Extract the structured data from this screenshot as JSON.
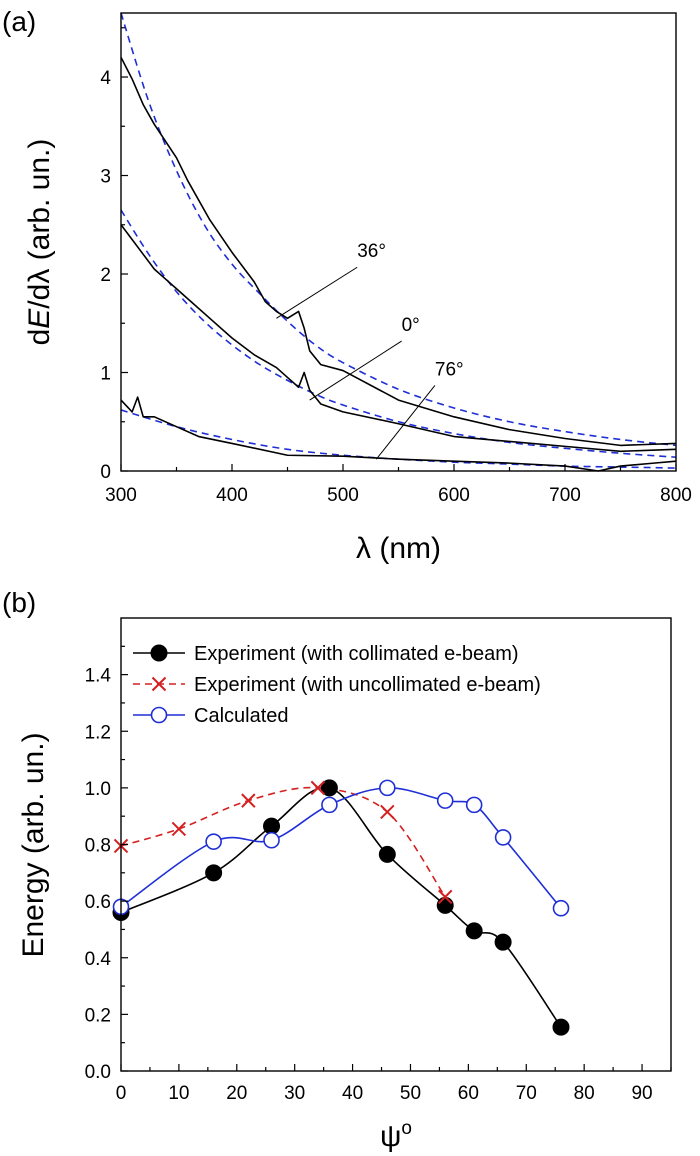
{
  "colors": {
    "measured": "#000000",
    "fit": "#1f2fd6",
    "collimated": "#000000",
    "uncollimated": "#d42020",
    "calculated": "#1f2fd6"
  },
  "chart_data": [
    {
      "type": "line",
      "panel_label": "(a)",
      "xlabel": "λ (nm)",
      "ylabel_prefix": "d",
      "ylabel_italic1": "E",
      "ylabel_mid": "/dλ (arb. un.)",
      "xlim": [
        300,
        800
      ],
      "ylim": [
        0,
        4.65
      ],
      "xticks": [
        "300",
        "400",
        "500",
        "600",
        "700",
        "800"
      ],
      "yticks": [
        "0",
        "1",
        "2",
        "3",
        "4"
      ],
      "series": [
        {
          "name": "36°",
          "style": "measured",
          "x": [
            300,
            310,
            320,
            330,
            340,
            350,
            360,
            380,
            400,
            420,
            430,
            440,
            450,
            460,
            465,
            470,
            480,
            500,
            550,
            600,
            650,
            700,
            750,
            800
          ],
          "y": [
            4.2,
            3.98,
            3.72,
            3.52,
            3.35,
            3.18,
            2.95,
            2.55,
            2.22,
            1.92,
            1.72,
            1.62,
            1.55,
            1.62,
            1.45,
            1.22,
            1.08,
            1.02,
            0.72,
            0.55,
            0.42,
            0.33,
            0.26,
            0.28
          ]
        },
        {
          "name": "36° fit",
          "style": "fit",
          "x": [
            300,
            325,
            350,
            375,
            400,
            425,
            450,
            475,
            500,
            550,
            600,
            650,
            700,
            750,
            800
          ],
          "y": [
            4.65,
            3.75,
            3.05,
            2.5,
            2.1,
            1.8,
            1.52,
            1.28,
            1.1,
            0.83,
            0.64,
            0.5,
            0.4,
            0.32,
            0.26
          ]
        },
        {
          "name": "0°",
          "style": "measured",
          "x": [
            300,
            310,
            320,
            330,
            340,
            350,
            360,
            380,
            400,
            420,
            440,
            450,
            460,
            465,
            470,
            480,
            500,
            550,
            600,
            650,
            700,
            750,
            800
          ],
          "y": [
            2.5,
            2.35,
            2.2,
            2.05,
            1.95,
            1.85,
            1.75,
            1.55,
            1.35,
            1.18,
            1.05,
            0.95,
            0.85,
            1.0,
            0.82,
            0.68,
            0.6,
            0.48,
            0.35,
            0.3,
            0.25,
            0.2,
            0.22
          ]
        },
        {
          "name": "0° fit",
          "style": "fit",
          "x": [
            300,
            325,
            350,
            375,
            400,
            425,
            450,
            475,
            500,
            550,
            600,
            650,
            700,
            750,
            800
          ],
          "y": [
            2.65,
            2.2,
            1.82,
            1.52,
            1.28,
            1.08,
            0.92,
            0.78,
            0.67,
            0.5,
            0.38,
            0.29,
            0.23,
            0.18,
            0.14
          ]
        },
        {
          "name": "76°",
          "style": "measured",
          "x": [
            300,
            310,
            315,
            320,
            330,
            350,
            370,
            400,
            450,
            500,
            550,
            600,
            650,
            700,
            730,
            750,
            780,
            800
          ],
          "y": [
            0.72,
            0.6,
            0.75,
            0.55,
            0.55,
            0.45,
            0.35,
            0.28,
            0.16,
            0.15,
            0.12,
            0.1,
            0.08,
            0.05,
            0.0,
            0.05,
            0.08,
            0.1
          ]
        },
        {
          "name": "76° fit",
          "style": "fit",
          "x": [
            300,
            350,
            400,
            450,
            500,
            550,
            600,
            650,
            700,
            750,
            800
          ],
          "y": [
            0.62,
            0.45,
            0.32,
            0.22,
            0.16,
            0.12,
            0.09,
            0.07,
            0.05,
            0.04,
            0.03
          ]
        }
      ],
      "annotations": [
        {
          "text": "36°",
          "x": 440,
          "y": 1.55,
          "label_x": 520,
          "label_y": 2.15
        },
        {
          "text": "0°",
          "x": 470,
          "y": 0.72,
          "label_x": 560,
          "label_y": 1.4
        },
        {
          "text": "76°",
          "x": 530,
          "y": 0.12,
          "label_x": 590,
          "label_y": 0.95
        }
      ]
    },
    {
      "type": "line",
      "panel_label": "(b)",
      "xlabel": "ψo",
      "xlabel_main": "ψ",
      "xlabel_sup": "o",
      "ylabel": "Energy (arb. un.)",
      "xlim": [
        0,
        95
      ],
      "ylim": [
        0,
        1.6
      ],
      "xticks": [
        "0",
        "10",
        "20",
        "30",
        "40",
        "50",
        "60",
        "70",
        "80",
        "90"
      ],
      "yticks": [
        "0.0",
        "0.2",
        "0.4",
        "0.6",
        "0.8",
        "1.0",
        "1.2",
        "1.4"
      ],
      "legend_position": "top-left",
      "series": [
        {
          "name": "Experiment (with collimated e-beam)",
          "style": "collimated",
          "marker": "filled-circle",
          "x": [
            0,
            16,
            26,
            36,
            46,
            56,
            61,
            66,
            76
          ],
          "y": [
            0.56,
            0.7,
            0.865,
            1.0,
            0.765,
            0.585,
            0.495,
            0.455,
            0.155
          ]
        },
        {
          "name": "Experiment (with uncollimated e-beam)",
          "style": "uncollimated",
          "marker": "x",
          "x": [
            0,
            10,
            22,
            34,
            46,
            56
          ],
          "y": [
            0.795,
            0.855,
            0.955,
            1.0,
            0.915,
            0.615
          ]
        },
        {
          "name": "Calculated",
          "style": "calculated",
          "marker": "open-circle",
          "x": [
            0,
            16,
            26,
            36,
            46,
            56,
            61,
            66,
            76
          ],
          "y": [
            0.58,
            0.81,
            0.815,
            0.94,
            1.0,
            0.955,
            0.94,
            0.825,
            0.575
          ]
        }
      ]
    }
  ]
}
